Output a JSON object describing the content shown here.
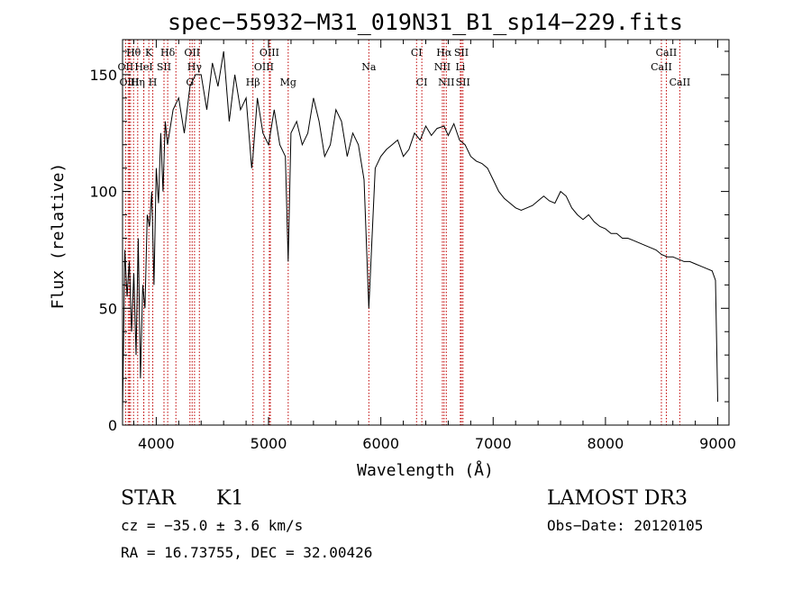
{
  "chart_data": {
    "type": "line",
    "title": "spec−55932−M31_019N31_B1_sp14−229.fits",
    "xlabel": "Wavelength (Å)",
    "ylabel": "Flux (relative)",
    "xlim": [
      3700,
      9100
    ],
    "ylim": [
      0,
      165
    ],
    "x_ticks": [
      4000,
      5000,
      6000,
      7000,
      8000,
      9000
    ],
    "y_ticks": [
      0,
      50,
      100,
      150
    ],
    "grid": false,
    "series": [
      {
        "name": "spectrum",
        "x": [
          3700,
          3720,
          3740,
          3760,
          3780,
          3800,
          3820,
          3840,
          3860,
          3880,
          3900,
          3920,
          3940,
          3960,
          3980,
          4000,
          4020,
          4040,
          4060,
          4080,
          4100,
          4150,
          4200,
          4250,
          4300,
          4350,
          4400,
          4450,
          4500,
          4550,
          4600,
          4650,
          4700,
          4750,
          4800,
          4850,
          4861,
          4900,
          4950,
          5000,
          5050,
          5100,
          5150,
          5175,
          5200,
          5250,
          5300,
          5350,
          5400,
          5450,
          5500,
          5550,
          5600,
          5650,
          5700,
          5750,
          5800,
          5850,
          5893,
          5950,
          6000,
          6050,
          6100,
          6150,
          6200,
          6250,
          6300,
          6350,
          6400,
          6450,
          6500,
          6563,
          6600,
          6650,
          6700,
          6750,
          6800,
          6850,
          6900,
          6950,
          7000,
          7050,
          7100,
          7150,
          7200,
          7250,
          7300,
          7350,
          7400,
          7450,
          7500,
          7550,
          7600,
          7650,
          7700,
          7750,
          7800,
          7850,
          7900,
          7950,
          8000,
          8050,
          8100,
          8150,
          8200,
          8250,
          8300,
          8350,
          8400,
          8450,
          8500,
          8550,
          8600,
          8650,
          8700,
          8750,
          8800,
          8850,
          8900,
          8950,
          8980,
          9000
        ],
        "y": [
          5,
          75,
          55,
          70,
          40,
          65,
          30,
          80,
          20,
          60,
          50,
          90,
          85,
          100,
          60,
          110,
          95,
          125,
          100,
          130,
          120,
          135,
          140,
          125,
          145,
          150,
          150,
          135,
          155,
          145,
          160,
          130,
          150,
          135,
          140,
          110,
          115,
          140,
          125,
          120,
          135,
          120,
          115,
          70,
          125,
          130,
          120,
          125,
          140,
          130,
          115,
          120,
          135,
          130,
          115,
          125,
          120,
          105,
          50,
          110,
          115,
          118,
          120,
          122,
          115,
          118,
          125,
          122,
          128,
          124,
          127,
          128,
          124,
          129,
          122,
          120,
          115,
          113,
          112,
          110,
          105,
          100,
          97,
          95,
          93,
          92,
          93,
          94,
          96,
          98,
          96,
          95,
          100,
          98,
          93,
          90,
          88,
          90,
          87,
          85,
          84,
          82,
          82,
          80,
          80,
          79,
          78,
          77,
          76,
          75,
          73,
          72,
          72,
          71,
          70,
          70,
          69,
          68,
          67,
          66,
          62,
          10
        ]
      }
    ],
    "spectral_lines": [
      {
        "label": "Hθ",
        "wl": 3798,
        "row": 1
      },
      {
        "label": "K",
        "wl": 3934,
        "row": 1
      },
      {
        "label": "Hδ",
        "wl": 4102,
        "row": 1
      },
      {
        "label": "OII",
        "wl": 4320,
        "row": 1
      },
      {
        "label": "OIII",
        "wl": 5007,
        "row": 1
      },
      {
        "label": "CI",
        "wl": 6318,
        "row": 1
      },
      {
        "label": "Hα",
        "wl": 6563,
        "row": 1
      },
      {
        "label": "SII",
        "wl": 6717,
        "row": 1
      },
      {
        "label": "CaII",
        "wl": 8542,
        "row": 1
      },
      {
        "label": "OII",
        "wl": 3727,
        "row": 2
      },
      {
        "label": "HeI",
        "wl": 3889,
        "row": 2
      },
      {
        "label": "SII",
        "wl": 4069,
        "row": 2
      },
      {
        "label": "Hγ",
        "wl": 4341,
        "row": 2
      },
      {
        "label": "OIII",
        "wl": 4959,
        "row": 2
      },
      {
        "label": "Na",
        "wl": 5893,
        "row": 2
      },
      {
        "label": "NII",
        "wl": 6548,
        "row": 2
      },
      {
        "label": "Li",
        "wl": 6708,
        "row": 2
      },
      {
        "label": "CaII",
        "wl": 8498,
        "row": 2
      },
      {
        "label": "OIII",
        "wl": 3760,
        "row": 3
      },
      {
        "label": "Hη",
        "wl": 3835,
        "row": 3
      },
      {
        "label": "H",
        "wl": 3969,
        "row": 3
      },
      {
        "label": "G",
        "wl": 4300,
        "row": 3
      },
      {
        "label": "Hβ",
        "wl": 4861,
        "row": 3
      },
      {
        "label": "Mg",
        "wl": 5175,
        "row": 3
      },
      {
        "label": "CI",
        "wl": 6365,
        "row": 3
      },
      {
        "label": "NII",
        "wl": 6583,
        "row": 3
      },
      {
        "label": "SII",
        "wl": 6731,
        "row": 3
      },
      {
        "label": "CaII",
        "wl": 8662,
        "row": 3
      }
    ],
    "extra_marker_lines": [
      3750,
      3771,
      3889,
      4175,
      4384,
      5016
    ]
  },
  "info": {
    "object_class": "STAR",
    "subclass": "K1",
    "survey": "LAMOST DR3",
    "cz": "cz = −35.0 ± 3.6 km/s",
    "obs_date": "Obs−Date: 20120105",
    "coords": "RA =  16.73755, DEC =  32.00426"
  },
  "colors": {
    "spectrum": "#000000",
    "marker_line": "#c00000",
    "axis": "#000000"
  }
}
